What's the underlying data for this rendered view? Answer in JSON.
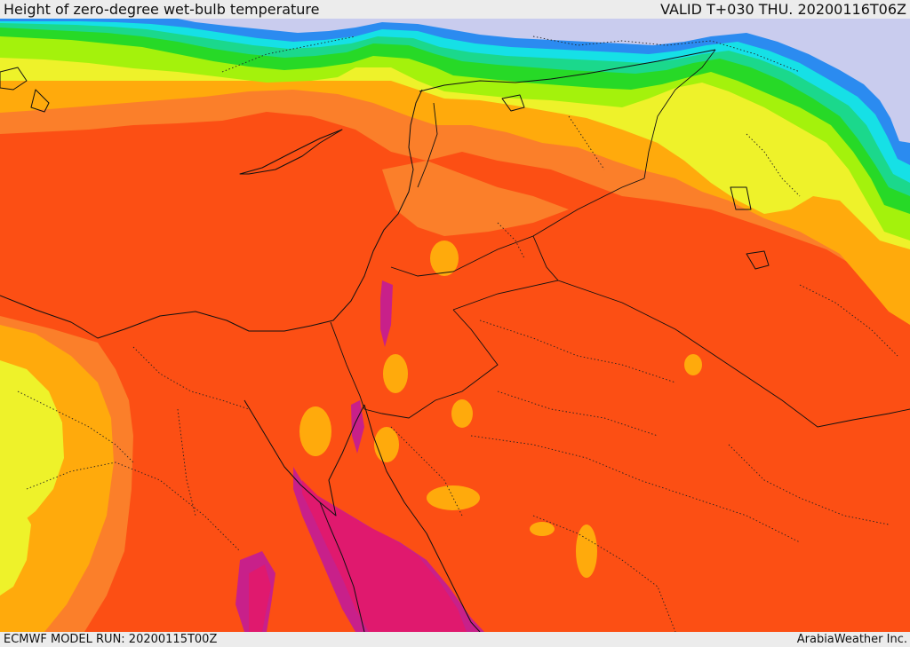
{
  "header": {
    "title": "Height of zero-degree wet-bulb temperature",
    "valid": "VALID T+030 THU. 20200116T06Z"
  },
  "footer": {
    "model_run": "ECMWF MODEL RUN: 20200115T00Z",
    "credit": "ArabiaWeather Inc."
  },
  "colors": {
    "deep_red_sea": "#e0196e",
    "magenta": "#c8208a",
    "red_orange": "#fc4f14",
    "orange": "#fb7f2a",
    "amber": "#ffaa0c",
    "yellow": "#eef22a",
    "lime": "#a4f20c",
    "green": "#27d927",
    "teal": "#1bd88c",
    "cyan": "#16e0e6",
    "blue": "#2b8bf0",
    "lavender": "#c9ccee"
  }
}
